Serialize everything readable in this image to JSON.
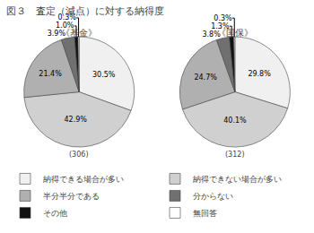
{
  "chart_data": {
    "type": "pie",
    "title": "図３　査定（減点）に対する納得度",
    "categories": [
      "納得できる場合が多い",
      "納得できない場合が多い",
      "半分半分である",
      "分からない",
      "その他",
      "無回答"
    ],
    "colors": [
      "#f0f0f0",
      "#d0d0d0",
      "#b0b0b0",
      "#707070",
      "#111111",
      "#ffffff"
    ],
    "series": [
      {
        "name": "《基金》",
        "values": [
          30.5,
          42.9,
          21.4,
          3.9,
          1.0,
          0.3
        ],
        "value_labels": [
          "30.5%",
          "42.9%",
          "21.4%",
          "3.9%",
          "1.0%",
          "0.3%"
        ],
        "annotation": "(306)"
      },
      {
        "name": "《国保》",
        "values": [
          29.8,
          40.1,
          24.7,
          3.8,
          1.3,
          0.3
        ],
        "value_labels": [
          "29.8%",
          "40.1%",
          "24.7%",
          "3.8%",
          "1.3%",
          "0.3%"
        ],
        "annotation": "(312)"
      }
    ],
    "data_labels": true,
    "legend": "bottom"
  }
}
